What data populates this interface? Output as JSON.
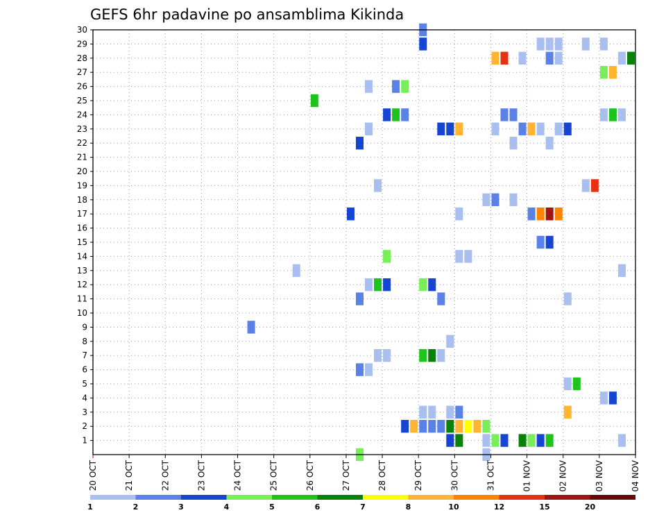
{
  "chart_data": {
    "type": "heatmap",
    "title": "GEFS 6hr padavine po ansamblima Kikinda",
    "xlabel": "",
    "ylabel": "",
    "x_tick_labels": [
      "20 OCT",
      "21 OCT",
      "22 OCT",
      "23 OCT",
      "24 OCT",
      "25 OCT",
      "26 OCT",
      "27 OCT",
      "28 OCT",
      "29 OCT",
      "30 OCT",
      "31 OCT",
      "01 NOV",
      "02 NOV",
      "03 NOV",
      "04 NOV"
    ],
    "x_range_days": [
      0,
      15
    ],
    "x_step_hours": 6,
    "y_tick_labels": [
      "1",
      "2",
      "3",
      "4",
      "5",
      "6",
      "7",
      "8",
      "9",
      "10",
      "11",
      "12",
      "13",
      "14",
      "15",
      "16",
      "17",
      "18",
      "19",
      "20",
      "21",
      "22",
      "23",
      "24",
      "25",
      "26",
      "27",
      "28",
      "29",
      "30"
    ],
    "y_range": [
      0,
      30
    ],
    "grid": true,
    "legend": {
      "placement": "bottom",
      "thresholds": [
        "1",
        "2",
        "3",
        "4",
        "5",
        "6",
        "7",
        "8",
        "10",
        "12",
        "15",
        "20"
      ],
      "colors": [
        "#a8bff0",
        "#5a82e6",
        "#1645d2",
        "#78ee5a",
        "#1ec31e",
        "#0a820a",
        "#ffff00",
        "#ffb432",
        "#ff8200",
        "#e63214",
        "#a01414",
        "#640a0a"
      ]
    },
    "cells_note": "each cell: [member, step index (6-hour steps from 20 OCT 00Z), color class 0-11]",
    "cells": [
      [
        30,
        36,
        1
      ],
      [
        29,
        36,
        2
      ],
      [
        29,
        49,
        0
      ],
      [
        29,
        50,
        0
      ],
      [
        29,
        51,
        0
      ],
      [
        29,
        54,
        0
      ],
      [
        29,
        56,
        0
      ],
      [
        28,
        44,
        7
      ],
      [
        28,
        45,
        9
      ],
      [
        28,
        47,
        0
      ],
      [
        28,
        50,
        1
      ],
      [
        28,
        51,
        0
      ],
      [
        28,
        58,
        0
      ],
      [
        28,
        59,
        5
      ],
      [
        27,
        56,
        3
      ],
      [
        27,
        57,
        7
      ],
      [
        26,
        30,
        0
      ],
      [
        26,
        33,
        1
      ],
      [
        26,
        34,
        3
      ],
      [
        25,
        24,
        4
      ],
      [
        24,
        32,
        2
      ],
      [
        24,
        33,
        4
      ],
      [
        24,
        34,
        1
      ],
      [
        24,
        45,
        1
      ],
      [
        24,
        46,
        1
      ],
      [
        24,
        56,
        0
      ],
      [
        24,
        57,
        4
      ],
      [
        24,
        58,
        0
      ],
      [
        23,
        30,
        0
      ],
      [
        23,
        38,
        2
      ],
      [
        23,
        39,
        2
      ],
      [
        23,
        40,
        7
      ],
      [
        23,
        44,
        0
      ],
      [
        23,
        47,
        1
      ],
      [
        23,
        48,
        7
      ],
      [
        23,
        49,
        0
      ],
      [
        23,
        51,
        0
      ],
      [
        23,
        52,
        2
      ],
      [
        22,
        29,
        2
      ],
      [
        22,
        46,
        0
      ],
      [
        22,
        50,
        0
      ],
      [
        19,
        31,
        0
      ],
      [
        19,
        54,
        0
      ],
      [
        19,
        55,
        9
      ],
      [
        18,
        43,
        0
      ],
      [
        18,
        44,
        1
      ],
      [
        18,
        46,
        0
      ],
      [
        17,
        28,
        2
      ],
      [
        17,
        40,
        0
      ],
      [
        17,
        48,
        1
      ],
      [
        17,
        49,
        8
      ],
      [
        17,
        50,
        10
      ],
      [
        17,
        51,
        8
      ],
      [
        15,
        49,
        1
      ],
      [
        15,
        50,
        2
      ],
      [
        14,
        32,
        3
      ],
      [
        14,
        40,
        0
      ],
      [
        14,
        41,
        0
      ],
      [
        13,
        22,
        0
      ],
      [
        13,
        58,
        0
      ],
      [
        12,
        30,
        0
      ],
      [
        12,
        31,
        4
      ],
      [
        12,
        32,
        2
      ],
      [
        12,
        36,
        3
      ],
      [
        12,
        37,
        2
      ],
      [
        11,
        29,
        1
      ],
      [
        11,
        38,
        1
      ],
      [
        11,
        52,
        0
      ],
      [
        9,
        17,
        1
      ],
      [
        8,
        39,
        0
      ],
      [
        7,
        31,
        0
      ],
      [
        7,
        32,
        0
      ],
      [
        7,
        36,
        4
      ],
      [
        7,
        37,
        5
      ],
      [
        7,
        38,
        0
      ],
      [
        6,
        29,
        1
      ],
      [
        6,
        30,
        0
      ],
      [
        5,
        52,
        0
      ],
      [
        5,
        53,
        4
      ],
      [
        4,
        56,
        0
      ],
      [
        4,
        57,
        2
      ],
      [
        3,
        36,
        0
      ],
      [
        3,
        37,
        0
      ],
      [
        3,
        39,
        0
      ],
      [
        3,
        40,
        1
      ],
      [
        3,
        52,
        7
      ],
      [
        2,
        34,
        2
      ],
      [
        2,
        35,
        7
      ],
      [
        2,
        36,
        1
      ],
      [
        2,
        37,
        1
      ],
      [
        2,
        38,
        1
      ],
      [
        2,
        39,
        5
      ],
      [
        2,
        40,
        7
      ],
      [
        2,
        41,
        6
      ],
      [
        2,
        42,
        7
      ],
      [
        2,
        43,
        3
      ],
      [
        1,
        39,
        2
      ],
      [
        1,
        40,
        5
      ],
      [
        1,
        43,
        0
      ],
      [
        1,
        44,
        3
      ],
      [
        1,
        45,
        2
      ],
      [
        1,
        47,
        5
      ],
      [
        1,
        48,
        3
      ],
      [
        1,
        49,
        2
      ],
      [
        1,
        50,
        4
      ],
      [
        1,
        58,
        0
      ],
      [
        0,
        29,
        3
      ],
      [
        0,
        43,
        0
      ]
    ]
  }
}
